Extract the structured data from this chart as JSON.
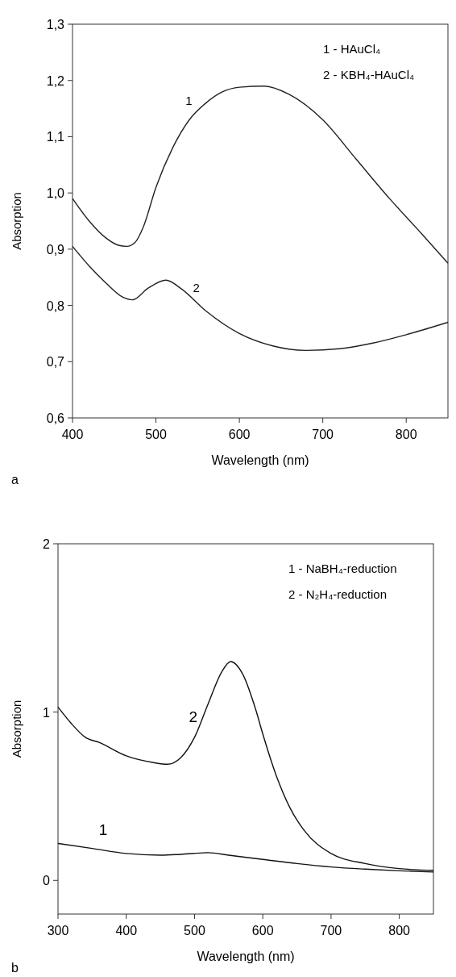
{
  "chart_data": [
    {
      "type": "line",
      "title": "a",
      "xlabel": "Wavelength (nm)",
      "ylabel": "Absorption",
      "xlim": [
        400,
        850
      ],
      "ylim": [
        0.6,
        1.3
      ],
      "xticks": [
        400,
        500,
        600,
        700,
        800
      ],
      "yticks": [
        {
          "value": 0.6,
          "label": "0,6"
        },
        {
          "value": 0.7,
          "label": "0,7"
        },
        {
          "value": 0.8,
          "label": "0,8"
        },
        {
          "value": 0.9,
          "label": "0,9"
        },
        {
          "value": 1.0,
          "label": "1,0"
        },
        {
          "value": 1.1,
          "label": "1,1"
        },
        {
          "value": 1.2,
          "label": "1,2"
        },
        {
          "value": 1.3,
          "label": "1,3"
        }
      ],
      "grid": false,
      "marker": "none",
      "line_style": "solid",
      "series": [
        {
          "name": "1",
          "color": "#222222",
          "x": [
            400,
            420,
            440,
            455,
            465,
            475,
            485,
            500,
            520,
            540,
            560,
            580,
            600,
            630,
            660,
            700,
            740,
            780,
            820,
            850
          ],
          "values": [
            0.99,
            0.95,
            0.92,
            0.907,
            0.905,
            0.912,
            0.94,
            1.01,
            1.08,
            1.13,
            1.16,
            1.18,
            1.188,
            1.19,
            1.175,
            1.13,
            1.06,
            0.99,
            0.925,
            0.875
          ]
        },
        {
          "name": "2",
          "color": "#222222",
          "x": [
            400,
            420,
            440,
            460,
            472,
            490,
            512,
            530,
            560,
            600,
            640,
            680,
            720,
            760,
            800,
            850
          ],
          "values": [
            0.905,
            0.87,
            0.84,
            0.815,
            0.81,
            0.83,
            0.845,
            0.83,
            0.79,
            0.75,
            0.728,
            0.72,
            0.723,
            0.733,
            0.748,
            0.77
          ]
        }
      ],
      "annotations": [
        "1 - HAuCl₄",
        "2 - KBH₄-HAuCl₄"
      ]
    },
    {
      "type": "line",
      "title": "b",
      "xlabel": "Wavelength (nm)",
      "ylabel": "Absorption",
      "xlim": [
        300,
        850
      ],
      "ylim": [
        -0.2,
        2
      ],
      "xticks": [
        300,
        400,
        500,
        600,
        700,
        800
      ],
      "yticks": [
        0,
        1,
        2
      ],
      "grid": false,
      "marker": "none",
      "line_style": "solid",
      "series": [
        {
          "name": "1",
          "color": "#111111",
          "x": [
            300,
            350,
            400,
            450,
            480,
            520,
            550,
            600,
            650,
            700,
            750,
            800,
            850
          ],
          "values": [
            0.22,
            0.19,
            0.16,
            0.15,
            0.155,
            0.165,
            0.15,
            0.125,
            0.1,
            0.08,
            0.067,
            0.057,
            0.05
          ]
        },
        {
          "name": "2",
          "color": "#111111",
          "x": [
            300,
            320,
            340,
            360,
            400,
            440,
            460,
            480,
            500,
            520,
            540,
            553,
            570,
            590,
            600,
            620,
            640,
            660,
            700,
            750,
            800,
            850
          ],
          "values": [
            1.03,
            0.93,
            0.85,
            0.82,
            0.74,
            0.7,
            0.69,
            0.73,
            0.85,
            1.05,
            1.24,
            1.3,
            1.23,
            1.01,
            0.87,
            0.62,
            0.43,
            0.3,
            0.16,
            0.1,
            0.07,
            0.06
          ]
        }
      ],
      "annotations": [
        "1 - NaBH₄-reduction",
        "2 - N₂H₄-reduction"
      ]
    }
  ]
}
